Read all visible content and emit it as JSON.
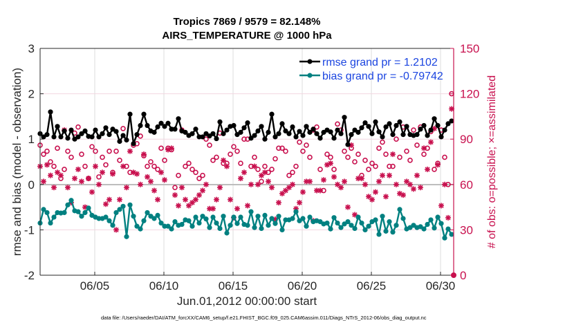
{
  "chart_data": {
    "type": "line",
    "title": [
      "Tropics 7869 / 9579 = 82.148%",
      "AIRS_TEMPERATURE @ 1000 hPa"
    ],
    "xlabel": "Jun.01,2012 00:00:00 start",
    "ylabel": "rmse and bias (model - observation)",
    "ylabel_right": "# of obs: o=possible; ×=assimilated",
    "footer": "data file: /Users/raeder/DAI/ATM_forcXX/CAM6_setup/f.e21.FHIST_BGC.f09_025.CAM6assim.011/Diags_NTrS_2012-06/obs_diag_output.nc",
    "xlim_days": [
      0,
      30
    ],
    "ylim": [
      -2,
      3
    ],
    "ylim_right": [
      0,
      150
    ],
    "x_ticks": [
      {
        "day": 4,
        "label": "06/05"
      },
      {
        "day": 9,
        "label": "06/10"
      },
      {
        "day": 14,
        "label": "06/15"
      },
      {
        "day": 19,
        "label": "06/20"
      },
      {
        "day": 24,
        "label": "06/25"
      },
      {
        "day": 29,
        "label": "06/30"
      }
    ],
    "y_ticks": [
      -2,
      -1,
      0,
      1,
      2,
      3
    ],
    "y_ticks_right": [
      0,
      30,
      60,
      90,
      120,
      150
    ],
    "grid": true,
    "legend_position": "top-right",
    "legend": [
      "rmse grand pr = 1.2102",
      "bias grand pr = -0.79742"
    ],
    "colors": {
      "rmse": "#000000",
      "bias": "#008080",
      "obs": "#c8104e",
      "legend_text": "#1a44e0",
      "zero_line": "#bbbbbb"
    },
    "x_start_day": 0.05,
    "x_step_day": 0.25,
    "series": [
      {
        "name": "rmse",
        "values": [
          1.12,
          1.05,
          1.1,
          1.6,
          1.05,
          1.28,
          1.05,
          1.18,
          1.02,
          1.2,
          1.0,
          1.05,
          1.12,
          1.18,
          1.06,
          1.05,
          1.2,
          1.05,
          1.12,
          1.25,
          1.1,
          1.22,
          1.17,
          0.95,
          1.08,
          0.98,
          1.55,
          0.9,
          1.1,
          1.3,
          1.55,
          1.3,
          1.18,
          1.15,
          1.27,
          1.35,
          1.28,
          1.35,
          1.22,
          1.22,
          1.45,
          1.18,
          1.15,
          1.08,
          1.12,
          1.22,
          1.05,
          1.05,
          1.12,
          1.07,
          1.12,
          1.01,
          1.38,
          1.12,
          1.2,
          1.28,
          1.3,
          1.1,
          1.15,
          1.25,
          1.36,
          1.02,
          1.08,
          1.18,
          1.28,
          1.0,
          1.15,
          1.55,
          1.05,
          1.12,
          1.34,
          1.18,
          1.12,
          1.27,
          1.05,
          1.17,
          1.08,
          1.28,
          1.15,
          1.22,
          1.12,
          1.02,
          1.15,
          1.2,
          1.16,
          1.02,
          1.2,
          1.12,
          1.48,
          0.88,
          1.1,
          1.2,
          1.15,
          1.25,
          1.36,
          1.28,
          1.12,
          1.38,
          1.16,
          1.05,
          1.27,
          1.34,
          1.1,
          1.3,
          1.38,
          1.1,
          1.28,
          1.1,
          1.08,
          1.1,
          1.22,
          1.3,
          1.08,
          1.2,
          1.45,
          1.3,
          1.05,
          1.2,
          1.34,
          1.4
        ]
      },
      {
        "name": "bias",
        "values": [
          -0.85,
          -0.55,
          -0.62,
          -0.85,
          -0.72,
          -0.62,
          -0.63,
          -0.62,
          -0.45,
          -0.35,
          -0.58,
          -0.6,
          -0.7,
          -0.62,
          -0.52,
          -0.68,
          -0.72,
          -0.75,
          -0.75,
          -0.72,
          -0.8,
          -0.9,
          -0.62,
          -0.55,
          -0.48,
          -1.15,
          -0.45,
          -0.7,
          -0.92,
          -0.98,
          -0.8,
          -0.62,
          -0.7,
          -0.75,
          -0.68,
          -0.85,
          -0.92,
          -0.92,
          -0.98,
          -0.82,
          -0.9,
          -0.88,
          -0.78,
          -0.8,
          -0.92,
          -0.72,
          -0.85,
          -0.7,
          -0.76,
          -0.95,
          -0.72,
          -0.85,
          -0.97,
          -0.7,
          -1.07,
          -0.9,
          -0.72,
          -0.86,
          -0.72,
          -0.88,
          -0.9,
          -0.6,
          -0.95,
          -0.7,
          -0.97,
          -0.68,
          -0.9,
          -0.75,
          -0.86,
          -0.7,
          -1.0,
          -0.78,
          -0.78,
          -0.75,
          -0.6,
          -0.8,
          -0.75,
          -0.92,
          -0.72,
          -0.82,
          -0.8,
          -0.82,
          -0.87,
          -0.85,
          -0.98,
          -0.73,
          -0.85,
          -0.95,
          -0.87,
          -0.82,
          -0.9,
          -0.97,
          -0.72,
          -0.85,
          -1.0,
          -0.92,
          -0.82,
          -0.78,
          -1.1,
          -0.7,
          -1.03,
          -0.82,
          -1.05,
          -0.9,
          -0.55,
          -0.75,
          -0.98,
          -0.95,
          -0.9,
          -0.95,
          -0.93,
          -0.98,
          -0.88,
          -0.78,
          -0.96,
          -0.72,
          -0.86,
          -1.18,
          -0.98,
          -1.1
        ]
      },
      {
        "name": "possible",
        "values": [
          86,
          80,
          82,
          75,
          72,
          84,
          64,
          70,
          82,
          78,
          94,
          98,
          80,
          72,
          64,
          85,
          82,
          65,
          78,
          73,
          82,
          68,
          82,
          76,
          97,
          72,
          68,
          86,
          87,
          92,
          79,
          72,
          75,
          72,
          70,
          84,
          76,
          84,
          83,
          58,
          66,
          96,
          72,
          74,
          70,
          68,
          64,
          66,
          90,
          86,
          76,
          78,
          94,
          74,
          74,
          80,
          85,
          82,
          74,
          90,
          90,
          72,
          78,
          70,
          62,
          72,
          68,
          70,
          77,
          84,
          84,
          82,
          66,
          68,
          72,
          88,
          82,
          86,
          78,
          96,
          98,
          70,
          56,
          80,
          78,
          70,
          100,
          96,
          82,
          78,
          84,
          75,
          80,
          66,
          76,
          70,
          74,
          72,
          84,
          88,
          80,
          72,
          72,
          90,
          78,
          98,
          82,
          76,
          96,
          86,
          98,
          80,
          84,
          95,
          70,
          74,
          96,
          78,
          60,
          120
        ]
      },
      {
        "name": "assimilated",
        "values": [
          72,
          62,
          73,
          66,
          58,
          68,
          66,
          96,
          58,
          48,
          64,
          70,
          62,
          45,
          64,
          55,
          72,
          60,
          68,
          47,
          50,
          67,
          30,
          50,
          72,
          58,
          82,
          68,
          67,
          60,
          80,
          65,
          62,
          56,
          50,
          68,
          63,
          83,
          84,
          53,
          46,
          58,
          50,
          46,
          48,
          50,
          53,
          56,
          60,
          44,
          44,
          50,
          58,
          76,
          72,
          50,
          38,
          44,
          64,
          68,
          46,
          60,
          72,
          60,
          66,
          68,
          62,
          58,
          37,
          48,
          54,
          56,
          58,
          60,
          44,
          48,
          55,
          62,
          62,
          36,
          56,
          56,
          63,
          73,
          74,
          65,
          60,
          58,
          62,
          45,
          86,
          40,
          64,
          64,
          60,
          52,
          50,
          55,
          62,
          66,
          52,
          66,
          80,
          60,
          54,
          53,
          62,
          60,
          57,
          66,
          58,
          84,
          70,
          88,
          97,
          73,
          46,
          60,
          38,
          110
        ]
      }
    ]
  }
}
